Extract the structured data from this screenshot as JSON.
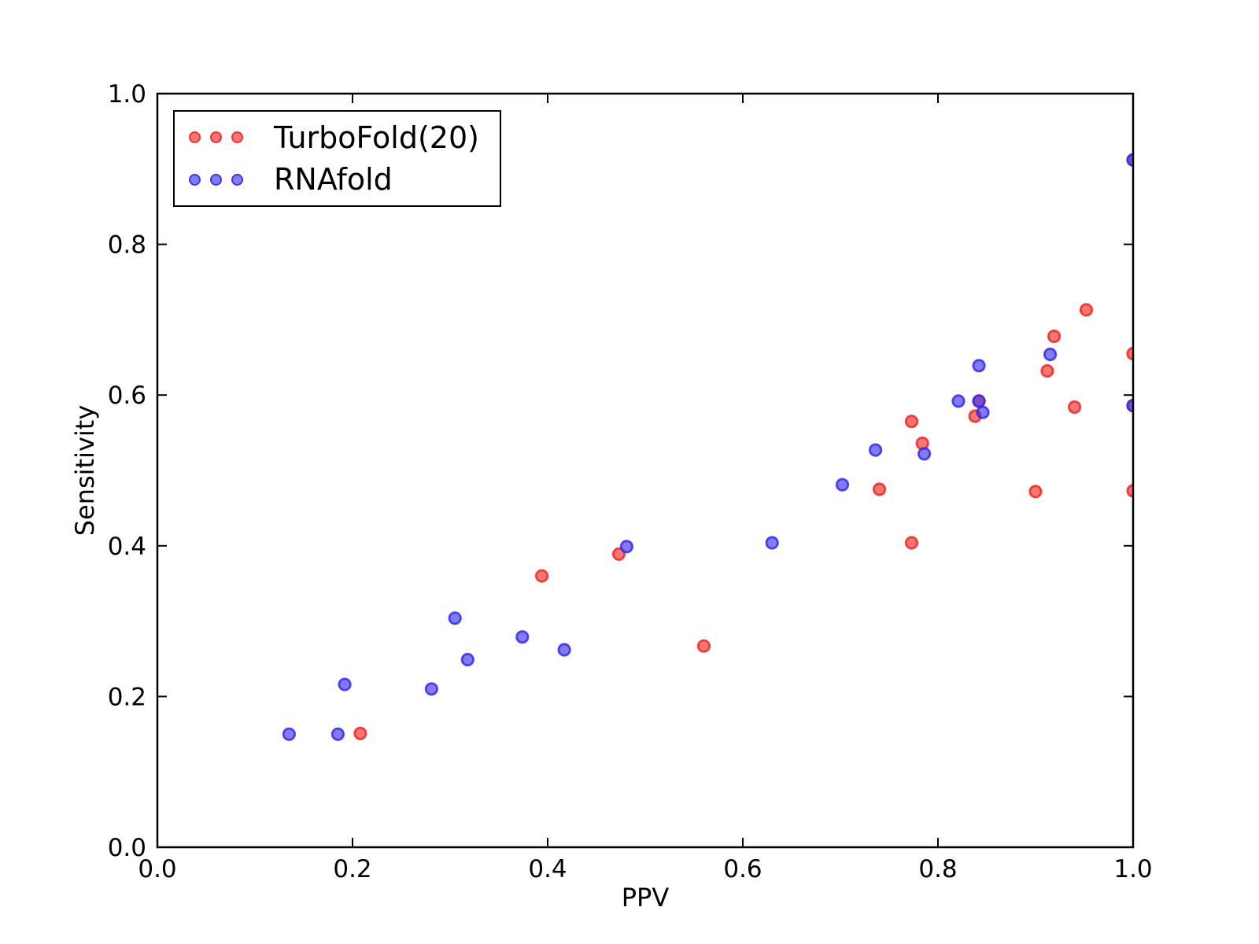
{
  "figure": {
    "background": "#ffffff",
    "spine_color": "#000000",
    "text_color": "#000000"
  },
  "chart_data": {
    "type": "scatter",
    "title": "",
    "xlabel": "PPV",
    "ylabel": "Sensitivity",
    "xlim": [
      0.0,
      1.0
    ],
    "ylim": [
      0.0,
      1.0
    ],
    "grid": false,
    "xticks": {
      "values": [
        0.0,
        0.2,
        0.4,
        0.6,
        0.8,
        1.0
      ],
      "labels": [
        "0.0",
        "0.2",
        "0.4",
        "0.6",
        "0.8",
        "1.0"
      ]
    },
    "yticks": {
      "values": [
        0.0,
        0.2,
        0.4,
        0.6,
        0.8,
        1.0
      ],
      "labels": [
        "0.0",
        "0.2",
        "0.4",
        "0.6",
        "0.8",
        "1.0"
      ]
    },
    "legend": {
      "position": "upper left"
    },
    "series": [
      {
        "name": "TurboFold(20)",
        "marker": "circle",
        "fill": "rgba(246,48,42,0.66)",
        "edge": "rgba(238,34,32,0.82)",
        "points": [
          [
            0.208,
            0.151
          ],
          [
            0.394,
            0.36
          ],
          [
            0.473,
            0.389
          ],
          [
            0.56,
            0.267
          ],
          [
            0.74,
            0.475
          ],
          [
            0.773,
            0.404
          ],
          [
            0.773,
            0.565
          ],
          [
            0.784,
            0.536
          ],
          [
            0.838,
            0.572
          ],
          [
            0.842,
            0.592
          ],
          [
            0.9,
            0.472
          ],
          [
            0.912,
            0.632
          ],
          [
            0.919,
            0.678
          ],
          [
            0.94,
            0.584
          ],
          [
            0.952,
            0.713
          ],
          [
            1.0,
            0.473
          ],
          [
            1.0,
            0.586
          ],
          [
            1.0,
            0.655
          ],
          [
            1.0,
            0.912
          ]
        ]
      },
      {
        "name": "RNAfold",
        "marker": "circle",
        "fill": "rgba(64,54,240,0.66)",
        "edge": "rgba(52,42,232,0.84)",
        "points": [
          [
            0.135,
            0.15
          ],
          [
            0.185,
            0.15
          ],
          [
            0.192,
            0.216
          ],
          [
            0.281,
            0.21
          ],
          [
            0.305,
            0.304
          ],
          [
            0.318,
            0.249
          ],
          [
            0.374,
            0.279
          ],
          [
            0.417,
            0.262
          ],
          [
            0.481,
            0.399
          ],
          [
            0.63,
            0.404
          ],
          [
            0.702,
            0.481
          ],
          [
            0.736,
            0.527
          ],
          [
            0.786,
            0.522
          ],
          [
            0.821,
            0.592
          ],
          [
            0.842,
            0.592
          ],
          [
            0.846,
            0.577
          ],
          [
            0.842,
            0.639
          ],
          [
            0.915,
            0.654
          ],
          [
            1.0,
            0.586
          ],
          [
            1.0,
            0.912
          ]
        ]
      }
    ]
  }
}
